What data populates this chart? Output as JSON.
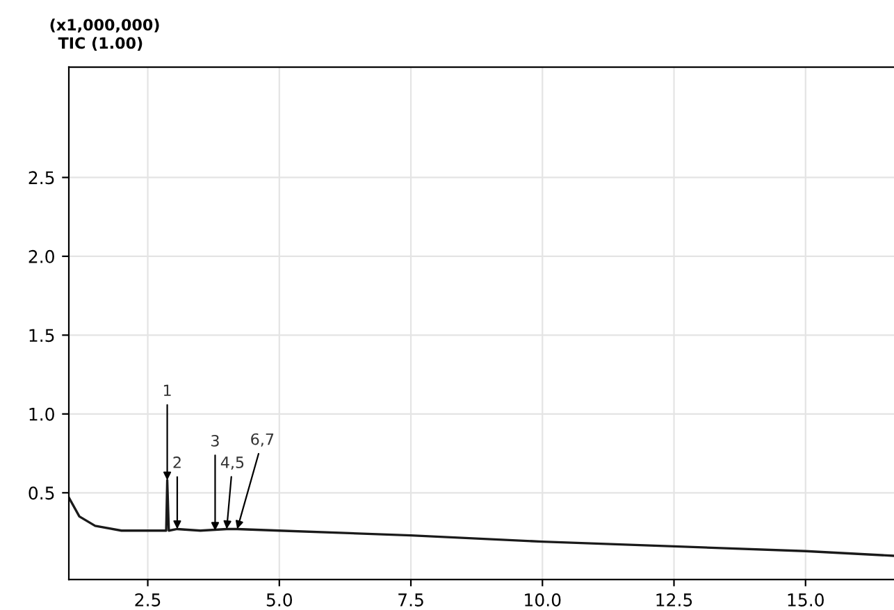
{
  "chart_data": {
    "type": "line",
    "x": [
      1.0,
      1.2,
      1.5,
      2.0,
      2.8,
      2.85,
      2.87,
      2.9,
      3.06,
      3.5,
      4.0,
      4.2,
      5.0,
      7.5,
      10.0,
      12.5,
      15.0,
      16.7
    ],
    "series": [
      {
        "color": "#1a1a1a",
        "values": [
          0.47,
          0.35,
          0.29,
          0.26,
          0.26,
          0.26,
          0.58,
          0.26,
          0.27,
          0.26,
          0.27,
          0.27,
          0.26,
          0.23,
          0.19,
          0.16,
          0.13,
          0.1
        ]
      }
    ],
    "xlim": [
      1.0,
      16.8
    ],
    "ylim": [
      -0.05,
      3.2
    ],
    "xticks": [
      {
        "value": 2.5,
        "label": "2.5"
      },
      {
        "value": 5.0,
        "label": "5.0"
      },
      {
        "value": 7.5,
        "label": "7.5"
      },
      {
        "value": 10.0,
        "label": "10.0"
      },
      {
        "value": 12.5,
        "label": "12.5"
      },
      {
        "value": 15.0,
        "label": "15.0"
      }
    ],
    "yticks": [
      {
        "value": 0.5,
        "label": "0.5"
      },
      {
        "value": 1.0,
        "label": "1.0"
      },
      {
        "value": 1.5,
        "label": "1.5"
      },
      {
        "value": 2.0,
        "label": "2.0"
      },
      {
        "value": 2.5,
        "label": "2.5"
      }
    ],
    "grid": true,
    "marker": "none",
    "line_style": "solid",
    "annotations": [
      "(x1,000,000)",
      "TIC (1.00)",
      {
        "text": "1",
        "x": 2.87,
        "y": 0.58
      },
      {
        "text": "2",
        "x": 3.06,
        "y": 0.27
      },
      {
        "text": "3",
        "x": 3.78,
        "y": 0.26
      },
      {
        "text": "4,5",
        "x": 4.0,
        "y": 0.27
      },
      {
        "text": "6,7",
        "x": 4.2,
        "y": 0.27
      }
    ]
  }
}
